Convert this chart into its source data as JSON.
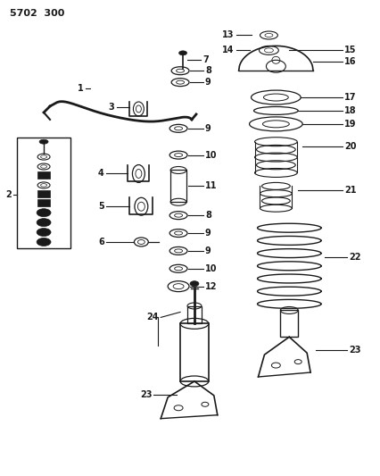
{
  "title": "5702 300",
  "bg_color": "#ffffff",
  "line_color": "#1a1a1a",
  "fig_width": 4.27,
  "fig_height": 5.33,
  "dpi": 100
}
